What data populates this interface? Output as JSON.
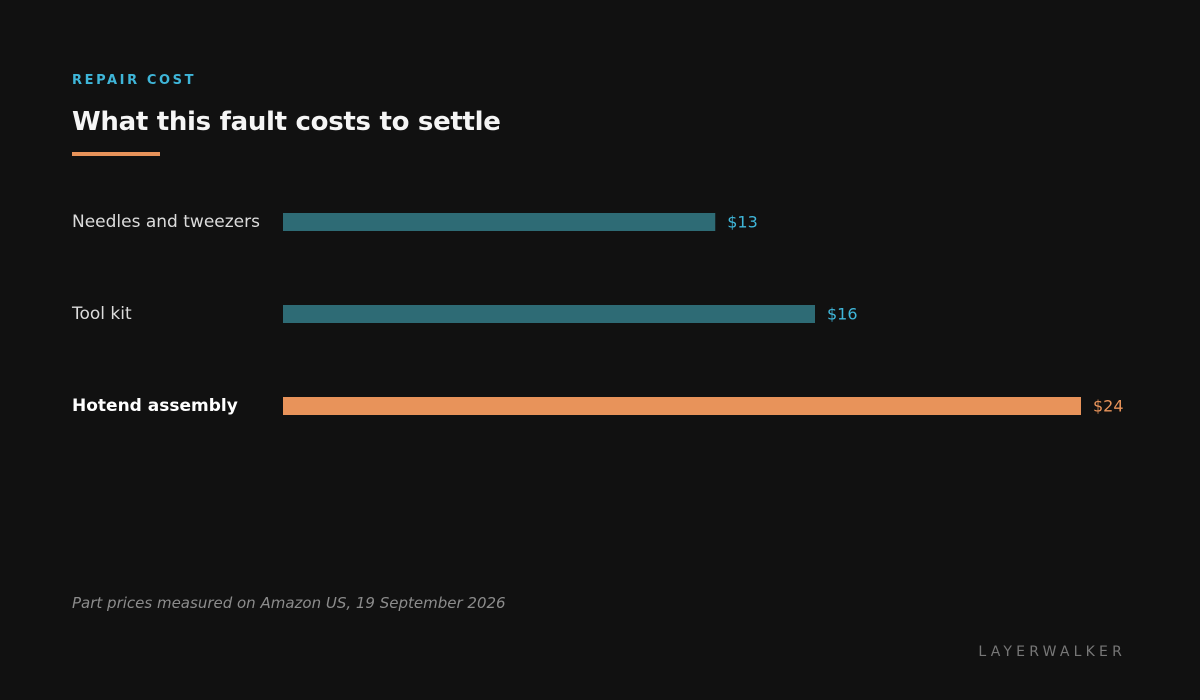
{
  "eyebrow": "REPAIR COST",
  "title": "What this fault costs to settle",
  "footnote": "Part prices measured on Amazon US, 19 September 2026",
  "brand": "LAYERWALKER",
  "colors": {
    "accent": "#e8935a",
    "bar": "#2e6b75",
    "value_label": "#3fb6d9",
    "highlight_label": "#e8935a",
    "eyebrow": "#3fb6d9"
  },
  "chart_data": {
    "type": "bar",
    "orientation": "horizontal",
    "categories": [
      "Needles and tweezers",
      "Tool kit",
      "Hotend assembly"
    ],
    "values": [
      13,
      16,
      24
    ],
    "value_labels": [
      "$13",
      "$16",
      "$24"
    ],
    "highlight_index": 2,
    "grid": false,
    "legend": "none"
  }
}
